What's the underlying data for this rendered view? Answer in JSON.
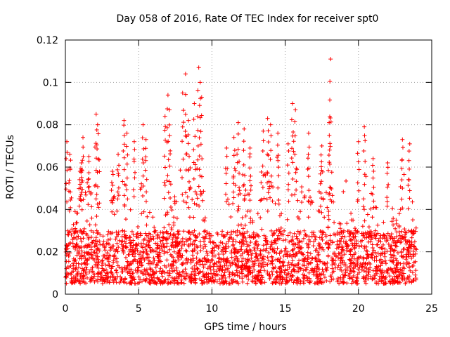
{
  "chart_data": {
    "type": "scatter",
    "title": "Day 058 of 2016, Rate Of TEC Index for receiver spt0",
    "xlabel": "GPS time / hours",
    "ylabel": "ROTI / TECUs",
    "xlim": [
      0,
      25
    ],
    "ylim": [
      0,
      0.12
    ],
    "xticks": [
      "0",
      "5",
      "10",
      "15",
      "20",
      "25"
    ],
    "yticks": [
      "0",
      "0.02",
      "0.04",
      "0.06",
      "0.08",
      "0.1",
      "0.12"
    ],
    "grid": true,
    "marker": "plus",
    "color": "#ff0000",
    "series_name": "ROTI",
    "x_range_data": [
      0,
      24
    ],
    "baseline_band": [
      0.005,
      0.03
    ],
    "peaks": [
      {
        "x": 0.1,
        "y": 0.072
      },
      {
        "x": 0.3,
        "y": 0.066
      },
      {
        "x": 1.0,
        "y": 0.058
      },
      {
        "x": 1.1,
        "y": 0.062
      },
      {
        "x": 1.2,
        "y": 0.074
      },
      {
        "x": 1.6,
        "y": 0.065
      },
      {
        "x": 2.1,
        "y": 0.085
      },
      {
        "x": 2.2,
        "y": 0.08
      },
      {
        "x": 3.2,
        "y": 0.058
      },
      {
        "x": 3.6,
        "y": 0.066
      },
      {
        "x": 4.0,
        "y": 0.082
      },
      {
        "x": 4.2,
        "y": 0.076
      },
      {
        "x": 4.7,
        "y": 0.072
      },
      {
        "x": 5.3,
        "y": 0.08
      },
      {
        "x": 5.5,
        "y": 0.073
      },
      {
        "x": 6.8,
        "y": 0.084
      },
      {
        "x": 7.0,
        "y": 0.094
      },
      {
        "x": 7.1,
        "y": 0.087
      },
      {
        "x": 8.0,
        "y": 0.095
      },
      {
        "x": 8.2,
        "y": 0.104
      },
      {
        "x": 8.4,
        "y": 0.082
      },
      {
        "x": 8.8,
        "y": 0.09
      },
      {
        "x": 9.1,
        "y": 0.107
      },
      {
        "x": 9.2,
        "y": 0.1
      },
      {
        "x": 9.3,
        "y": 0.093
      },
      {
        "x": 11.0,
        "y": 0.069
      },
      {
        "x": 11.5,
        "y": 0.074
      },
      {
        "x": 11.8,
        "y": 0.081
      },
      {
        "x": 12.2,
        "y": 0.078
      },
      {
        "x": 12.6,
        "y": 0.069
      },
      {
        "x": 13.5,
        "y": 0.077
      },
      {
        "x": 13.8,
        "y": 0.083
      },
      {
        "x": 14.0,
        "y": 0.08
      },
      {
        "x": 14.5,
        "y": 0.076
      },
      {
        "x": 15.2,
        "y": 0.071
      },
      {
        "x": 15.5,
        "y": 0.09
      },
      {
        "x": 15.7,
        "y": 0.087
      },
      {
        "x": 16.6,
        "y": 0.076
      },
      {
        "x": 17.5,
        "y": 0.07
      },
      {
        "x": 18.0,
        "y": 0.081
      },
      {
        "x": 18.1,
        "y": 0.111
      },
      {
        "x": 20.0,
        "y": 0.072
      },
      {
        "x": 20.4,
        "y": 0.079
      },
      {
        "x": 21.0,
        "y": 0.064
      },
      {
        "x": 22.0,
        "y": 0.062
      },
      {
        "x": 23.0,
        "y": 0.073
      },
      {
        "x": 23.5,
        "y": 0.071
      }
    ]
  }
}
